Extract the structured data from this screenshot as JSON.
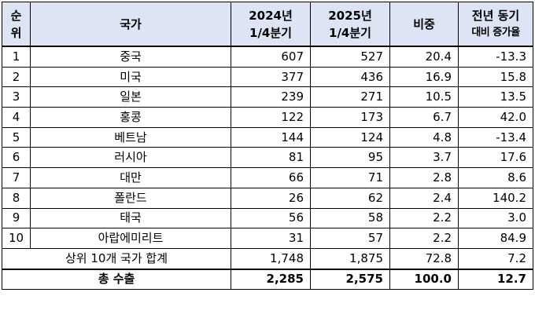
{
  "header": {
    "rank": [
      "순",
      "위"
    ],
    "country": "국가",
    "q2024": [
      "2024년",
      "1/4분기"
    ],
    "q2025": [
      "2025년",
      "1/4분기"
    ],
    "share": "비중",
    "growth": [
      "전년 동기",
      "대비 증가율"
    ]
  },
  "rows": [
    {
      "rank": "1",
      "country": "중국",
      "v2024": "607",
      "v2025": "527",
      "share": "20.4",
      "growth": "-13.3"
    },
    {
      "rank": "2",
      "country": "미국",
      "v2024": "377",
      "v2025": "436",
      "share": "16.9",
      "growth": "15.8"
    },
    {
      "rank": "3",
      "country": "일본",
      "v2024": "239",
      "v2025": "271",
      "share": "10.5",
      "growth": "13.5"
    },
    {
      "rank": "4",
      "country": "홍콩",
      "v2024": "122",
      "v2025": "173",
      "share": "6.7",
      "growth": "42.0"
    },
    {
      "rank": "5",
      "country": "베트남",
      "v2024": "144",
      "v2025": "124",
      "share": "4.8",
      "growth": "-13.4"
    },
    {
      "rank": "6",
      "country": "러시아",
      "v2024": "81",
      "v2025": "95",
      "share": "3.7",
      "growth": "17.6"
    },
    {
      "rank": "7",
      "country": "대만",
      "v2024": "66",
      "v2025": "71",
      "share": "2.8",
      "growth": "8.6"
    },
    {
      "rank": "8",
      "country": "폴란드",
      "v2024": "26",
      "v2025": "62",
      "share": "2.4",
      "growth": "140.2"
    },
    {
      "rank": "9",
      "country": "태국",
      "v2024": "56",
      "v2025": "58",
      "share": "2.2",
      "growth": "3.0"
    },
    {
      "rank": "10",
      "country": "아랍에미리트",
      "v2024": "31",
      "v2025": "57",
      "share": "2.2",
      "growth": "84.9"
    }
  ],
  "subtotal": {
    "label": "상위 10개 국가 합계",
    "v2024": "1,748",
    "v2025": "1,875",
    "share": "72.8",
    "growth": "7.2"
  },
  "total": {
    "label": "총 수출",
    "v2024": "2,285",
    "v2025": "2,575",
    "share": "100.0",
    "growth": "12.7"
  },
  "colors": {
    "header_bg": "#dde4f4"
  }
}
